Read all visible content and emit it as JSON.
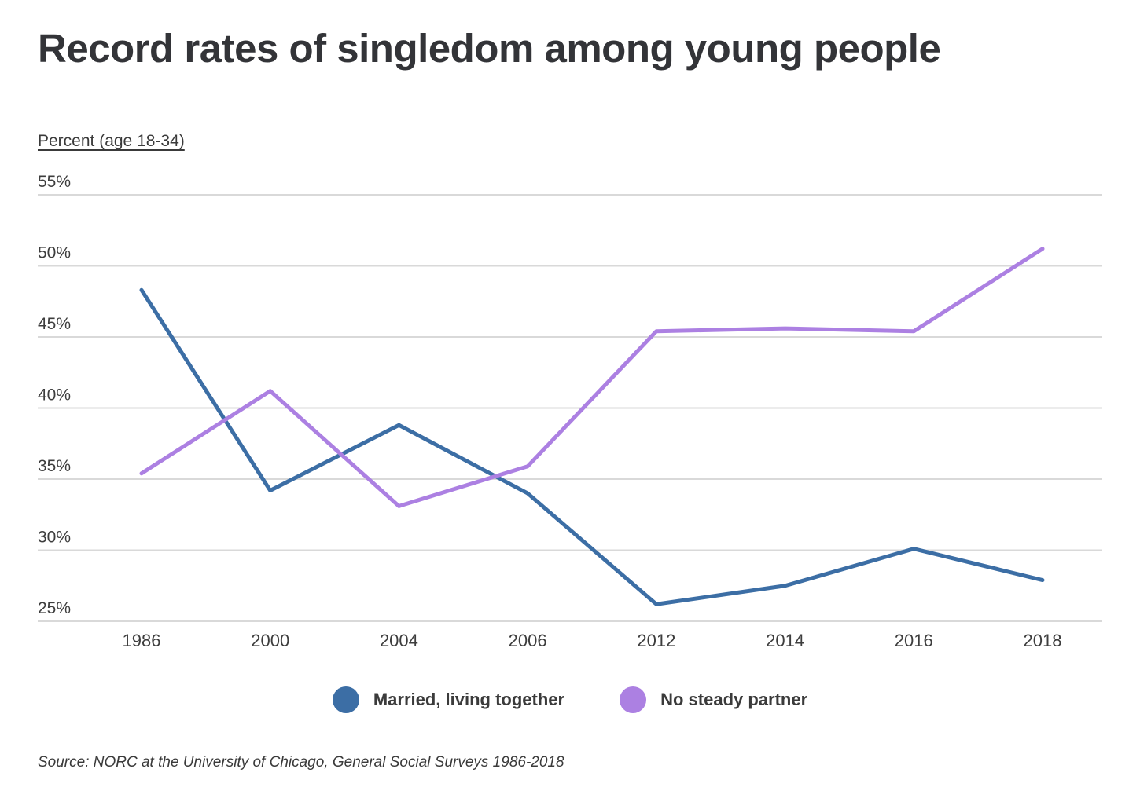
{
  "title": "Record rates of singledom among young people",
  "axis_title": "Percent (age 18-34)",
  "source": "Source: NORC at the University of Chicago, General Social Surveys 1986-2018",
  "colors": {
    "married_line": "#3c6ea5",
    "no_partner_line": "#ac80e2",
    "gridline": "#d9d9d9",
    "title_text": "#333438",
    "tick_text": "#3d3d3d"
  },
  "legend": [
    {
      "label": "Married, living together",
      "color": "#3c6ea5"
    },
    {
      "label": "No steady partner",
      "color": "#ac80e2"
    }
  ],
  "chart_data": {
    "type": "line",
    "categories": [
      "1986",
      "2000",
      "2004",
      "2006",
      "2012",
      "2014",
      "2016",
      "2018"
    ],
    "series": [
      {
        "name": "Married, living together",
        "color": "#3c6ea5",
        "values": [
          48.3,
          34.2,
          38.8,
          34.0,
          26.2,
          27.5,
          30.1,
          27.9
        ]
      },
      {
        "name": "No steady partner",
        "color": "#ac80e2",
        "values": [
          35.4,
          41.2,
          33.1,
          35.9,
          45.4,
          45.6,
          45.4,
          51.2
        ]
      }
    ],
    "title": "Record rates of singledom among young people",
    "xlabel": "",
    "ylabel": "Percent (age 18-34)",
    "ylim": [
      25,
      55
    ],
    "yticks": [
      25,
      30,
      35,
      40,
      45,
      50,
      55
    ],
    "ytick_format": "{v}%",
    "grid": true,
    "legend_position": "bottom"
  }
}
